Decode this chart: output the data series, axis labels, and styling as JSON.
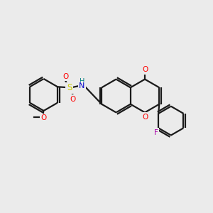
{
  "bg_color": "#ebebeb",
  "bond_color": "#1a1a1a",
  "atom_colors": {
    "O": "#ff0000",
    "S": "#cccc00",
    "N": "#0000cc",
    "H": "#008080",
    "F": "#aa00aa"
  }
}
